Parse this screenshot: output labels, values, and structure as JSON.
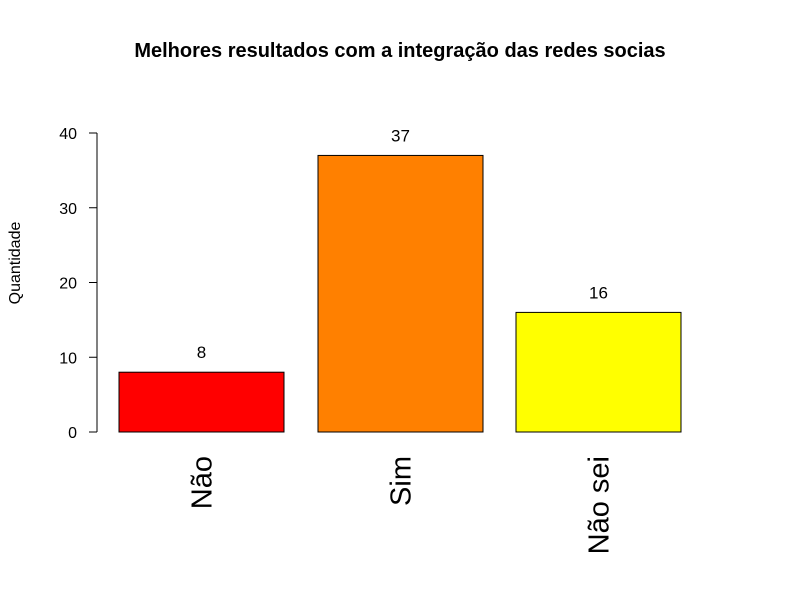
{
  "chart_data": {
    "type": "bar",
    "title": "Melhores resultados com a integração das redes socias",
    "ylabel": "Quantidade",
    "xlabel": "",
    "categories": [
      "Não",
      "Sim",
      "Não sei"
    ],
    "values": [
      8,
      37,
      16
    ],
    "data_labels": [
      "8",
      "37",
      "16"
    ],
    "colors": [
      "#FF0000",
      "#FF8000",
      "#FFFF00"
    ],
    "ylim": [
      0,
      40
    ],
    "yticks": [
      0,
      10,
      20,
      30,
      40
    ],
    "ytick_labels": [
      "0",
      "10",
      "20",
      "30",
      "40"
    ],
    "grid": false,
    "legend": "none"
  }
}
